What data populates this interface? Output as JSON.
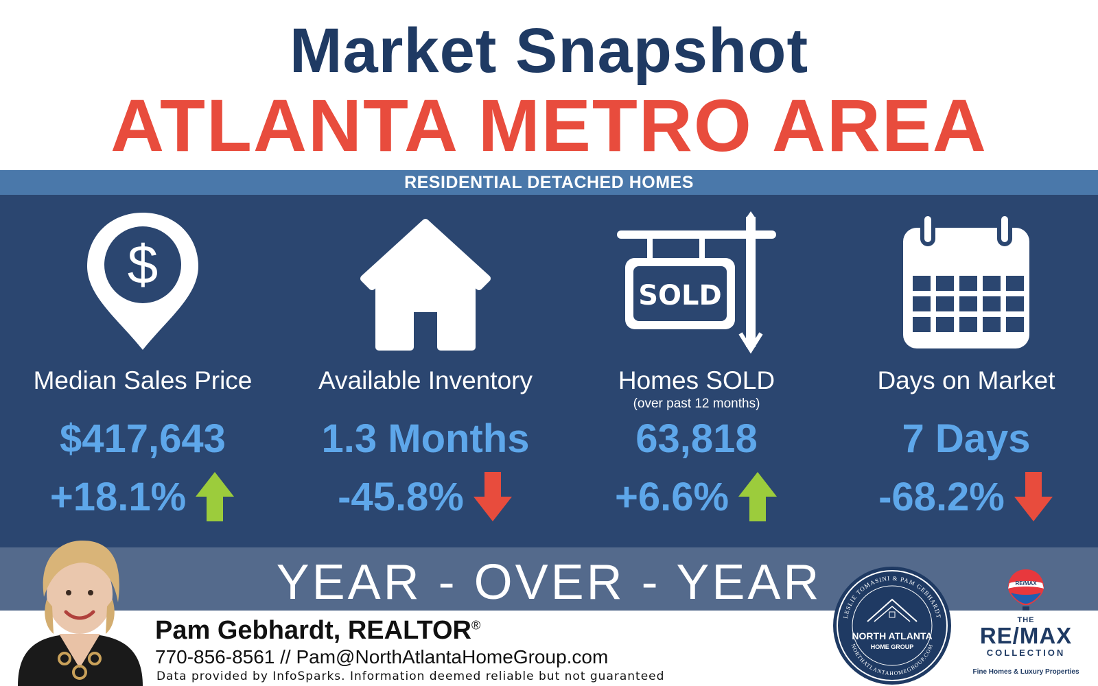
{
  "header": {
    "title": "Market Snapshot",
    "subtitle": "ATLANTA METRO AREA"
  },
  "band": {
    "label": "RESIDENTIAL DETACHED HOMES"
  },
  "stats": [
    {
      "icon": "dollar-location-pin-icon",
      "label": "Median Sales Price",
      "note": "",
      "value": "$417,643",
      "change": "+18.1%",
      "direction": "up"
    },
    {
      "icon": "house-icon",
      "label": "Available Inventory",
      "note": "",
      "value": "1.3 Months",
      "change": "-45.8%",
      "direction": "down"
    },
    {
      "icon": "sold-sign-icon",
      "label": "Homes SOLD",
      "note": "(over past 12 months)",
      "value": "63,818",
      "change": "+6.6%",
      "direction": "up"
    },
    {
      "icon": "calendar-icon",
      "label": "Days on Market",
      "note": "",
      "value": "7 Days",
      "change": "-68.2%",
      "direction": "down"
    }
  ],
  "icons": {
    "sold_sign_text": "SOLD"
  },
  "yoy": {
    "label": "YEAR - OVER - YEAR"
  },
  "footer": {
    "agent_name": "Pam Gebhardt, REALTOR",
    "registered_mark": "®",
    "contact": "770-856-8561 // Pam@NorthAtlantaHomeGroup.com",
    "disclaimer": "Data provided by InfoSparks. Information deemed reliable but not guaranteed"
  },
  "seal": {
    "ring_text": "LESLIE TOMASINI & PAM GEBHARDT",
    "bottom_text": "NORTHATLANTAHOMEGROUP.COM",
    "name": "NORTH ATLANTA",
    "sub": "HOME GROUP"
  },
  "remax": {
    "balloon_text": "RE/MAX",
    "the": "THE",
    "brand": "RE/MAX",
    "collection": "COLLECTION",
    "tagline": "Fine Homes & Luxury Properties"
  },
  "colors": {
    "title": "#1f3a63",
    "subtitle": "#e84c3d",
    "band": "#4a78aa",
    "panel": "#2b4670",
    "value": "#5ea7ea",
    "up_arrow": "#9ccc3c",
    "down_arrow": "#e84c3d",
    "yoy_band": "#546a8c"
  }
}
